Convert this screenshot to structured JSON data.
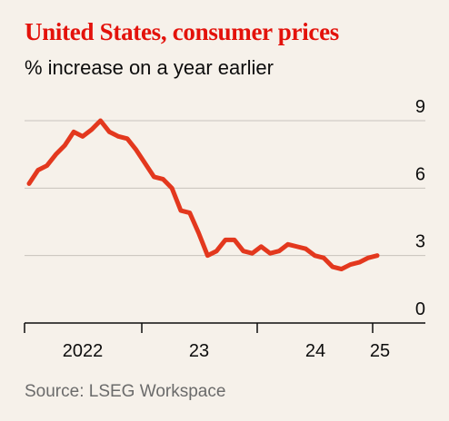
{
  "title": "United States, consumer prices",
  "subtitle": "% increase on a year earlier",
  "source": "Source: LSEG Workspace",
  "colors": {
    "accent": "#e3120b",
    "line": "#e3381e",
    "grid": "#c8c3bd",
    "axis": "#0d0d0d",
    "background": "#f6f1ea"
  },
  "chart_data": {
    "type": "line",
    "title": "United States, consumer prices",
    "subtitle": "% increase on a year earlier",
    "xlabel": "",
    "ylabel": "",
    "ylim": [
      0,
      9
    ],
    "yticks": [
      "0",
      "3",
      "6",
      "9"
    ],
    "xtick_labels": [
      "2022",
      "23",
      "24",
      "25"
    ],
    "x": [
      "2021-10",
      "2021-11",
      "2021-12",
      "2022-01",
      "2022-02",
      "2022-03",
      "2022-04",
      "2022-05",
      "2022-06",
      "2022-07",
      "2022-08",
      "2022-09",
      "2022-10",
      "2022-11",
      "2022-12",
      "2023-01",
      "2023-02",
      "2023-03",
      "2023-04",
      "2023-05",
      "2023-06",
      "2023-07",
      "2023-08",
      "2023-09",
      "2023-10",
      "2023-11",
      "2023-12",
      "2024-01",
      "2024-02",
      "2024-03",
      "2024-04",
      "2024-05",
      "2024-06",
      "2024-07",
      "2024-08",
      "2024-09",
      "2024-10",
      "2024-11",
      "2024-12",
      "2025-01"
    ],
    "series": [
      {
        "name": "",
        "values": [
          6.2,
          6.8,
          7.0,
          7.5,
          7.9,
          8.5,
          8.3,
          8.6,
          9.0,
          8.5,
          8.3,
          8.2,
          7.7,
          7.1,
          6.5,
          6.4,
          6.0,
          5.0,
          4.9,
          4.0,
          3.0,
          3.2,
          3.7,
          3.7,
          3.2,
          3.1,
          3.4,
          3.1,
          3.2,
          3.5,
          3.4,
          3.3,
          3.0,
          2.9,
          2.5,
          2.4,
          2.6,
          2.7,
          2.9,
          3.0
        ]
      }
    ],
    "grid": true,
    "legend": "none"
  }
}
